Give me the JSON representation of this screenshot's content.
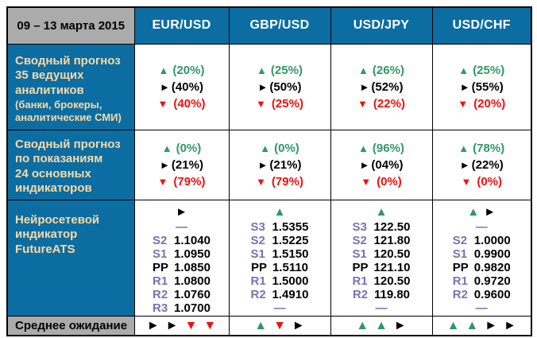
{
  "colors": {
    "blue": "#0b6da2",
    "gray": "#ababab",
    "peach": "#fcd9a4",
    "green": "#2e9966",
    "red": "#ee1111",
    "slate": "#7474b4",
    "border": "#000000",
    "cell": "#ffffff"
  },
  "glyphs": {
    "up": "▲",
    "flat": "►",
    "down": "▼",
    "dash": "—"
  },
  "header": {
    "date_range": "09 – 13 марта 2015",
    "pairs": [
      "EUR/USD",
      "GBP/USD",
      "USD/JPY",
      "USD/CHF"
    ]
  },
  "analysts": {
    "label": "Сводный прогноз\n35 ведущих\nаналитиков",
    "sublabel": "(банки, брокеры,\nаналитические СМИ)",
    "cells": [
      {
        "up": "(20%)",
        "flat": "(40%)",
        "down": "(40%)"
      },
      {
        "up": "(25%)",
        "flat": "(50%)",
        "down": "(25%)"
      },
      {
        "up": "(26%)",
        "flat": "(52%)",
        "down": "(22%)"
      },
      {
        "up": "(25%)",
        "flat": "(55%)",
        "down": "(20%)"
      }
    ]
  },
  "indicators": {
    "label": "Сводный прогноз\nпо показаниям\n24 основных\nиндикаторов",
    "cells": [
      {
        "up": "(0%)",
        "flat": "(21%)",
        "down": "(79%)"
      },
      {
        "up": "(0%)",
        "flat": "(21%)",
        "down": "(79%)"
      },
      {
        "up": "(96%)",
        "flat": "(04%)",
        "down": "(0%)"
      },
      {
        "up": "(78%)",
        "flat": "(22%)",
        "down": "(0%)"
      }
    ]
  },
  "neural": {
    "label": "Нейросетевой\nиндикатор\nFutureATS",
    "cells": [
      {
        "signal": [
          "flat"
        ],
        "levels": [
          {
            "style": "d",
            "n": "",
            "v": "—"
          },
          {
            "style": "s",
            "n": "S2",
            "v": "1.1040"
          },
          {
            "style": "s",
            "n": "S1",
            "v": "1.0950"
          },
          {
            "style": "p",
            "n": "PP",
            "v": "1.0850"
          },
          {
            "style": "s",
            "n": "R1",
            "v": "1.0800"
          },
          {
            "style": "s",
            "n": "R2",
            "v": "1.0760"
          },
          {
            "style": "s",
            "n": "R3",
            "v": "1.0700"
          }
        ]
      },
      {
        "signal": [
          "up"
        ],
        "levels": [
          {
            "style": "s",
            "n": "S3",
            "v": "1.5355"
          },
          {
            "style": "s",
            "n": "S2",
            "v": "1.5225"
          },
          {
            "style": "s",
            "n": "S1",
            "v": "1.5150"
          },
          {
            "style": "p",
            "n": "PP",
            "v": "1.5110"
          },
          {
            "style": "s",
            "n": "R1",
            "v": "1.5000"
          },
          {
            "style": "s",
            "n": "R2",
            "v": "1.4910"
          },
          {
            "style": "d",
            "n": "",
            "v": "—"
          }
        ]
      },
      {
        "signal": [
          "up"
        ],
        "levels": [
          {
            "style": "s",
            "n": "S3",
            "v": "122.50"
          },
          {
            "style": "s",
            "n": "S2",
            "v": "121.80"
          },
          {
            "style": "s",
            "n": "S1",
            "v": "120.50"
          },
          {
            "style": "p",
            "n": "PP",
            "v": "121.10"
          },
          {
            "style": "s",
            "n": "R1",
            "v": "120.50"
          },
          {
            "style": "s",
            "n": "R2",
            "v": "119.80"
          },
          {
            "style": "d",
            "n": "",
            "v": "—"
          }
        ]
      },
      {
        "signal": [
          "up",
          "flat"
        ],
        "levels": [
          {
            "style": "d",
            "n": "",
            "v": "—"
          },
          {
            "style": "s",
            "n": "S2",
            "v": "1.0000"
          },
          {
            "style": "s",
            "n": "S1",
            "v": "0.9900"
          },
          {
            "style": "p",
            "n": "PP",
            "v": "0.9820"
          },
          {
            "style": "s",
            "n": "R1",
            "v": "0.9720"
          },
          {
            "style": "s",
            "n": "R2",
            "v": "0.9600"
          },
          {
            "style": "d",
            "n": "",
            "v": "—"
          }
        ]
      }
    ]
  },
  "average": {
    "label": "Среднее ожидание",
    "cells": [
      [
        "flat",
        "flat",
        "down",
        "down"
      ],
      [
        "up",
        "down",
        "flat"
      ],
      [
        "up",
        "up",
        "flat"
      ],
      [
        "up",
        "up",
        "flat",
        "flat"
      ]
    ]
  },
  "chart_data": {
    "type": "table",
    "title": "09 – 13 марта 2015",
    "columns": [
      "",
      "EUR/USD",
      "GBP/USD",
      "USD/JPY",
      "USD/CHF"
    ],
    "rows": [
      {
        "label": "Сводный прогноз 35 ведущих аналитиков (банки, брокеры, аналитические СМИ)",
        "values": [
          "▲(20%) ►(40%) ▼(40%)",
          "▲(25%) ►(50%) ▼(25%)",
          "▲(26%) ►(52%) ▼(22%)",
          "▲(25%) ►(55%) ▼(20%)"
        ]
      },
      {
        "label": "Сводный прогноз по показаниям 24 основных индикаторов",
        "values": [
          "▲(0%) ►(21%) ▼(79%)",
          "▲(0%) ►(21%) ▼(79%)",
          "▲(96%) ►(04%) ▼(0%)",
          "▲(78%) ►(22%) ▼(0%)"
        ]
      },
      {
        "label": "Нейросетевой индикатор FutureATS",
        "values": [
          "► | — , S2 1.1040, S1 1.0950, PP 1.0850, R1 1.0800, R2 1.0760, R3 1.0700",
          "▲ | S3 1.5355, S2 1.5225, S1 1.5150, PP 1.5110, R1 1.5000, R2 1.4910, —",
          "▲ | S3 122.50, S2 121.80, S1 120.50, PP 121.10, R1 120.50, R2 119.80, —",
          "▲► | — , S2 1.0000, S1 0.9900, PP 0.9820, R1 0.9720, R2 0.9600, —"
        ]
      },
      {
        "label": "Среднее ожидание",
        "values": [
          "► ► ▼ ▼",
          "▲ ▼ ►",
          "▲ ▲ ►",
          "▲ ▲ ► ►"
        ]
      }
    ]
  }
}
